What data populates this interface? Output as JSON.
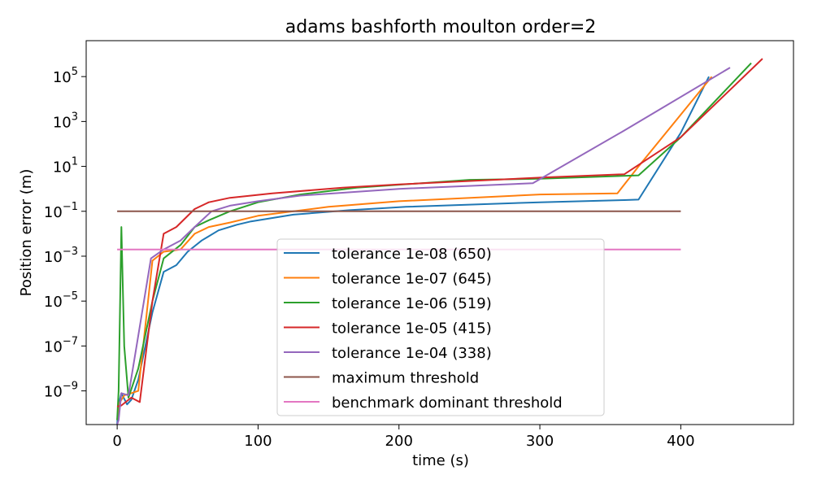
{
  "chart_data": {
    "type": "line",
    "title": "adams bashforth moulton order=2",
    "xlabel": "time (s)",
    "ylabel": "Position error (m)",
    "xlim": [
      -22,
      480
    ],
    "ylim_exp": [
      -10.5,
      6.6
    ],
    "y_scale": "log",
    "x_ticks": [
      0,
      100,
      200,
      300,
      400
    ],
    "y_tick_exponents": [
      5,
      3,
      1,
      -1,
      -3,
      -5,
      -7,
      -9
    ],
    "grid": false,
    "legend_placement": "lower center",
    "series": [
      {
        "name": "tolerance 1e-08 (650)",
        "color": "#1f77b4",
        "points": [
          [
            0,
            -10.5
          ],
          [
            1,
            -9.6
          ],
          [
            3,
            -9.1
          ],
          [
            7,
            -9.6
          ],
          [
            10,
            -9.4
          ],
          [
            15,
            -8.5
          ],
          [
            25,
            -5.5
          ],
          [
            33,
            -3.7
          ],
          [
            42,
            -3.4
          ],
          [
            50,
            -2.8
          ],
          [
            60,
            -2.3
          ],
          [
            72,
            -1.85
          ],
          [
            85,
            -1.6
          ],
          [
            95,
            -1.45
          ],
          [
            125,
            -1.15
          ],
          [
            165,
            -0.95
          ],
          [
            205,
            -0.8
          ],
          [
            300,
            -0.6
          ],
          [
            360,
            -0.5
          ],
          [
            370,
            -0.48
          ],
          [
            400,
            2.5
          ],
          [
            420,
            5.0
          ]
        ]
      },
      {
        "name": "tolerance 1e-07 (645)",
        "color": "#ff7f0e",
        "points": [
          [
            0,
            -10.3
          ],
          [
            2,
            -9.5
          ],
          [
            5,
            -9.2
          ],
          [
            10,
            -9.1
          ],
          [
            15,
            -9.0
          ],
          [
            25,
            -3.2
          ],
          [
            33,
            -2.8
          ],
          [
            45,
            -2.7
          ],
          [
            55,
            -2.0
          ],
          [
            65,
            -1.7
          ],
          [
            80,
            -1.5
          ],
          [
            100,
            -1.2
          ],
          [
            150,
            -0.8
          ],
          [
            200,
            -0.55
          ],
          [
            300,
            -0.25
          ],
          [
            355,
            -0.2
          ],
          [
            370,
            1.0
          ],
          [
            422,
            5.0
          ]
        ]
      },
      {
        "name": "tolerance 1e-06 (519)",
        "color": "#2ca02c",
        "points": [
          [
            0,
            -10.3
          ],
          [
            1,
            -9.0
          ],
          [
            3,
            -1.7
          ],
          [
            5,
            -7.0
          ],
          [
            8,
            -9.3
          ],
          [
            15,
            -8.0
          ],
          [
            25,
            -5.0
          ],
          [
            33,
            -3.1
          ],
          [
            45,
            -2.5
          ],
          [
            55,
            -1.7
          ],
          [
            65,
            -1.4
          ],
          [
            80,
            -1.0
          ],
          [
            100,
            -0.6
          ],
          [
            130,
            -0.25
          ],
          [
            170,
            0.05
          ],
          [
            250,
            0.4
          ],
          [
            300,
            0.45
          ],
          [
            370,
            0.6
          ],
          [
            400,
            2.3
          ],
          [
            450,
            5.6
          ]
        ]
      },
      {
        "name": "tolerance 1e-05 (415)",
        "color": "#d62728",
        "points": [
          [
            0,
            -9.7
          ],
          [
            3,
            -9.65
          ],
          [
            10,
            -9.3
          ],
          [
            16,
            -9.5
          ],
          [
            25,
            -5.0
          ],
          [
            33,
            -2.0
          ],
          [
            42,
            -1.7
          ],
          [
            55,
            -0.9
          ],
          [
            65,
            -0.6
          ],
          [
            80,
            -0.4
          ],
          [
            110,
            -0.2
          ],
          [
            160,
            0.05
          ],
          [
            200,
            0.2
          ],
          [
            300,
            0.5
          ],
          [
            360,
            0.65
          ],
          [
            400,
            2.3
          ],
          [
            458,
            5.8
          ]
        ]
      },
      {
        "name": "tolerance 1e-04 (338)",
        "color": "#9467bd",
        "points": [
          [
            0,
            -10.5
          ],
          [
            1,
            -10.3
          ],
          [
            3,
            -9.1
          ],
          [
            8,
            -9.2
          ],
          [
            24,
            -3.1
          ],
          [
            33,
            -2.7
          ],
          [
            45,
            -2.3
          ],
          [
            55,
            -1.7
          ],
          [
            67,
            -1.0
          ],
          [
            80,
            -0.75
          ],
          [
            100,
            -0.55
          ],
          [
            130,
            -0.3
          ],
          [
            200,
            0.0
          ],
          [
            295,
            0.25
          ],
          [
            360,
            2.6
          ],
          [
            435,
            5.4
          ]
        ]
      },
      {
        "name": "maximum threshold",
        "color": "#8c564b",
        "points": [
          [
            0,
            -1.0
          ],
          [
            400,
            -1.0
          ]
        ]
      },
      {
        "name": "benchmark dominant threshold",
        "color": "#e377c2",
        "points": [
          [
            0,
            -2.7
          ],
          [
            400,
            -2.7
          ]
        ]
      }
    ]
  }
}
